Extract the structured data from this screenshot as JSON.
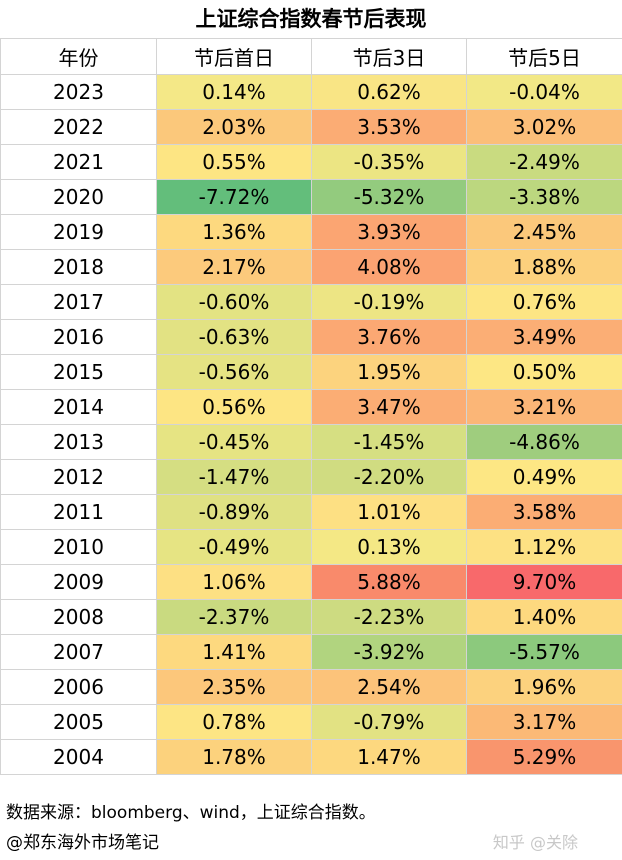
{
  "title": "上证综合指数春节后表现",
  "headers": [
    "年份",
    "节后首日",
    "节后3日",
    "节后5日"
  ],
  "rows": [
    {
      "year": "2023",
      "values": [
        "0.14%",
        "0.62%",
        "-0.04%"
      ],
      "colors": [
        "#f4e887",
        "#f9e585",
        "#f2e886"
      ]
    },
    {
      "year": "2022",
      "values": [
        "2.03%",
        "3.53%",
        "3.02%"
      ],
      "colors": [
        "#fbc87b",
        "#fbac74",
        "#fbbe79"
      ]
    },
    {
      "year": "2021",
      "values": [
        "0.55%",
        "-0.35%",
        "-2.49%"
      ],
      "colors": [
        "#fde583",
        "#ece583",
        "#c9db80"
      ]
    },
    {
      "year": "2020",
      "values": [
        "-7.72%",
        "-5.32%",
        "-3.38%"
      ],
      "colors": [
        "#63be7b",
        "#93cb7e",
        "#bcd77f"
      ]
    },
    {
      "year": "2019",
      "values": [
        "1.36%",
        "3.93%",
        "2.45%"
      ],
      "colors": [
        "#fdd97f",
        "#fba572",
        "#fbc87b"
      ]
    },
    {
      "year": "2018",
      "values": [
        "2.17%",
        "4.08%",
        "1.88%"
      ],
      "colors": [
        "#fcca7c",
        "#fba372",
        "#fcd07d"
      ]
    },
    {
      "year": "2017",
      "values": [
        "-0.60%",
        "-0.19%",
        "0.76%"
      ],
      "colors": [
        "#e3e383",
        "#ede584",
        "#fde584"
      ]
    },
    {
      "year": "2016",
      "values": [
        "-0.63%",
        "3.76%",
        "3.49%"
      ],
      "colors": [
        "#e2e283",
        "#fba873",
        "#fbae75"
      ]
    },
    {
      "year": "2015",
      "values": [
        "-0.56%",
        "1.95%",
        "0.50%"
      ],
      "colors": [
        "#e5e383",
        "#fcd37e",
        "#fde784"
      ]
    },
    {
      "year": "2014",
      "values": [
        "0.56%",
        "3.47%",
        "3.21%"
      ],
      "colors": [
        "#fde583",
        "#fbad74",
        "#fbb677"
      ]
    },
    {
      "year": "2013",
      "values": [
        "-0.45%",
        "-1.45%",
        "-4.86%"
      ],
      "colors": [
        "#e6e483",
        "#d6df82",
        "#9fcd7e"
      ]
    },
    {
      "year": "2012",
      "values": [
        "-1.47%",
        "-2.20%",
        "0.49%"
      ],
      "colors": [
        "#d5de82",
        "#d0dc81",
        "#fde784"
      ]
    },
    {
      "year": "2011",
      "values": [
        "-0.89%",
        "1.01%",
        "3.58%"
      ],
      "colors": [
        "#dfe183",
        "#fde083",
        "#fbad74"
      ]
    },
    {
      "year": "2010",
      "values": [
        "-0.49%",
        "0.13%",
        "1.12%"
      ],
      "colors": [
        "#e6e483",
        "#f4e885",
        "#fde183"
      ]
    },
    {
      "year": "2009",
      "values": [
        "1.06%",
        "5.88%",
        "9.70%"
      ],
      "colors": [
        "#fde083",
        "#f98a6b",
        "#f8696b"
      ]
    },
    {
      "year": "2008",
      "values": [
        "-2.37%",
        "-2.23%",
        "1.40%"
      ],
      "colors": [
        "#c9da80",
        "#cddb81",
        "#fdd97f"
      ]
    },
    {
      "year": "2007",
      "values": [
        "1.41%",
        "-3.92%",
        "-5.57%"
      ],
      "colors": [
        "#fdd97f",
        "#b1d47f",
        "#8cc97d"
      ]
    },
    {
      "year": "2006",
      "values": [
        "2.35%",
        "2.54%",
        "1.96%"
      ],
      "colors": [
        "#fcc77b",
        "#fcc37a",
        "#fcd27e"
      ]
    },
    {
      "year": "2005",
      "values": [
        "0.78%",
        "-0.79%",
        "3.17%"
      ],
      "colors": [
        "#fde584",
        "#e2e283",
        "#fbb976"
      ]
    },
    {
      "year": "2004",
      "values": [
        "1.78%",
        "1.47%",
        "5.29%"
      ],
      "colors": [
        "#fcd27d",
        "#fdd87f",
        "#f9956d"
      ]
    }
  ],
  "source": "数据来源：bloomberg、wind，上证综合指数。",
  "credit": "@郑东海外市场笔记",
  "watermark": "知乎 @关除"
}
